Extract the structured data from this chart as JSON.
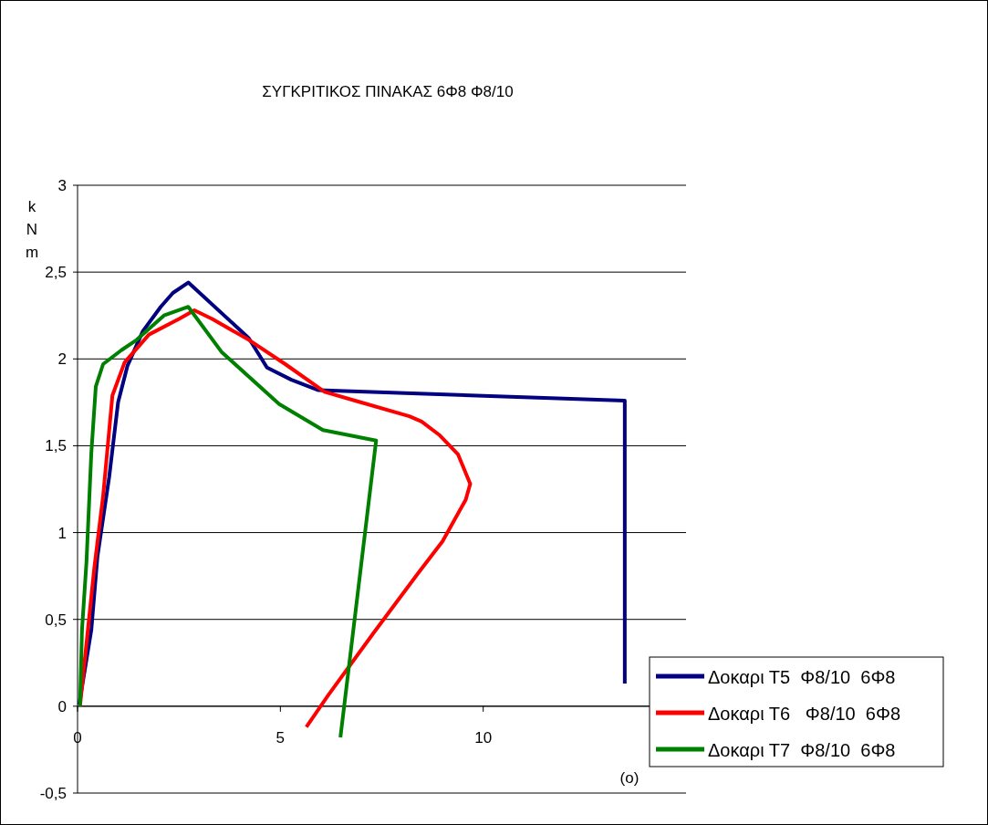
{
  "chart_data": {
    "type": "line",
    "title": "ΣΥΓΚΡΙΤΙΚΟΣ ΠΙΝΑΚΑΣ 6Φ8  Φ8/10",
    "xlabel": "(ο)",
    "ylabel": "kNm",
    "xlim": [
      0,
      15
    ],
    "xticks": [
      0,
      5,
      10
    ],
    "ylim": [
      -0.5,
      3
    ],
    "yticks": [
      {
        "value": -0.5,
        "label": "-0,5"
      },
      0,
      {
        "value": 0.5,
        "label": "0,5"
      },
      1,
      {
        "value": 1.5,
        "label": "1,5"
      },
      2,
      {
        "value": 2.5,
        "label": "2,5"
      },
      3
    ],
    "grid": "y",
    "legend": "bottom right",
    "marker": "none",
    "line_style": "solid",
    "series": [
      {
        "name": "Δοκαρι Τ5  Φ8/10  6Φ8",
        "color": "#000080",
        "x": [
          0.04,
          0.34,
          0.49,
          0.78,
          1.0,
          1.23,
          1.61,
          2.05,
          2.35,
          2.73,
          4.22,
          4.67,
          5.27,
          5.94,
          13.49,
          13.49
        ],
        "values": [
          0.01,
          0.44,
          0.86,
          1.32,
          1.75,
          1.96,
          2.16,
          2.3,
          2.38,
          2.44,
          2.12,
          1.95,
          1.88,
          1.82,
          1.76,
          0.13
        ]
      },
      {
        "name": "Δοκαρι Τ6   Φ8/10  6Φ8",
        "color": "#ff0000",
        "x": [
          0.06,
          0.41,
          0.63,
          0.86,
          1.16,
          1.76,
          2.5,
          2.88,
          3.32,
          4.22,
          5.12,
          6.09,
          6.84,
          8.18,
          8.48,
          8.93,
          9.38,
          9.68,
          9.57,
          9.0,
          8.41,
          7.29,
          6.17,
          5.64
        ],
        "values": [
          0.0,
          0.79,
          1.21,
          1.79,
          1.98,
          2.14,
          2.23,
          2.28,
          2.23,
          2.11,
          1.97,
          1.81,
          1.76,
          1.67,
          1.64,
          1.56,
          1.45,
          1.28,
          1.19,
          0.95,
          0.77,
          0.42,
          0.06,
          -0.12
        ]
      },
      {
        "name": "Δοκαρι Τ7  Φ8/10  6Φ8",
        "color": "#008000",
        "x": [
          0.06,
          0.11,
          0.22,
          0.34,
          0.45,
          0.63,
          1.08,
          1.46,
          2.13,
          2.73,
          3.55,
          4.97,
          6.05,
          7.36,
          6.48
        ],
        "values": [
          0.0,
          0.44,
          0.83,
          1.46,
          1.84,
          1.97,
          2.05,
          2.11,
          2.25,
          2.3,
          2.04,
          1.74,
          1.59,
          1.53,
          -0.18
        ]
      }
    ]
  }
}
